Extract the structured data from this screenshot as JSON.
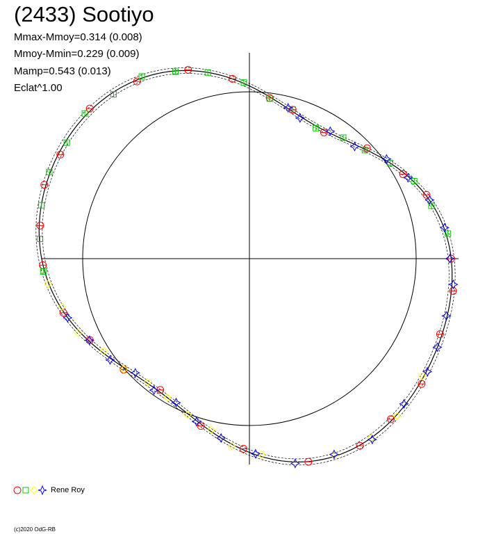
{
  "header": {
    "title": "(2433) Sootiyo",
    "stat_lines": [
      "Mmax-Mmoy=0.314 (0.008)",
      "Mmoy-Mmin=0.229 (0.009)",
      "Mamp=0.543 (0.013)",
      "Eclat^1.00"
    ]
  },
  "legend": {
    "observer": "Rene Roy"
  },
  "footer": {
    "copyright": "(c)2020 OdG-RB"
  },
  "chart_data": {
    "type": "scatter",
    "projection": "polar",
    "title": "(2433) Sootiyo",
    "reference_circle_radius": 1.0,
    "fit_curve_harmonics": [
      {
        "order": 0,
        "a": 1.145,
        "b": 0.0
      },
      {
        "order": 1,
        "a": -0.018,
        "b": -0.035
      },
      {
        "order": 2,
        "a": 0.065,
        "b": -0.165
      },
      {
        "order": 3,
        "a": 0.0,
        "b": 0.028
      },
      {
        "order": 4,
        "a": 0.018,
        "b": 0.036
      }
    ],
    "series": [
      {
        "marker": "circle",
        "color": "#ff0000",
        "phases": [
          0.0,
          0.055,
          0.08,
          0.12,
          0.165,
          0.205,
          0.23,
          0.265,
          0.3,
          0.34,
          0.38,
          0.42,
          0.445,
          0.475,
          0.505,
          0.545,
          0.575,
          0.615,
          0.655,
          0.705,
          0.745,
          0.795,
          0.835,
          0.865,
          0.9,
          0.94,
          0.975
        ]
      },
      {
        "marker": "square",
        "color": "#00cc00",
        "phases": [
          0.02,
          0.045,
          0.07,
          0.095,
          0.12,
          0.145,
          0.175,
          0.205,
          0.23,
          0.255,
          0.285,
          0.31,
          0.335,
          0.36,
          0.385,
          0.41,
          0.435,
          0.46,
          0.485,
          0.51
        ]
      },
      {
        "marker": "diamond",
        "color": "#ffff00",
        "phases": [
          0.52,
          0.54,
          0.565,
          0.59,
          0.615,
          0.64,
          0.665,
          0.69,
          0.715,
          0.735,
          0.76,
          0.785,
          0.815,
          0.845,
          0.87,
          0.905
        ]
      },
      {
        "marker": "star",
        "color": "#0000ff",
        "phases": [
          0.0,
          0.025,
          0.05,
          0.075,
          0.1,
          0.13,
          0.16,
          0.195,
          0.21,
          0.55,
          0.575,
          0.6,
          0.625,
          0.65,
          0.675,
          0.7,
          0.725,
          0.755,
          0.785,
          0.815,
          0.845,
          0.88,
          0.91,
          0.93,
          0.955,
          0.98
        ]
      }
    ]
  }
}
